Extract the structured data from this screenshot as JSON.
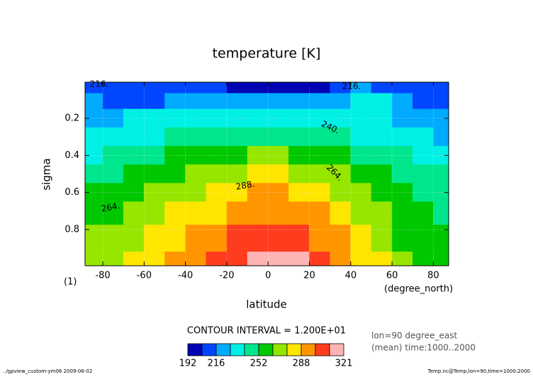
{
  "chart_data": {
    "type": "contour",
    "title": "temperature [K]",
    "x_label": "latitude",
    "y_label": "sigma",
    "x_units": "(degree_north)",
    "y_units": "(1)",
    "x": [
      -85,
      -75,
      -65,
      -55,
      -45,
      -35,
      -25,
      -15,
      -5,
      5,
      15,
      25,
      35,
      45,
      55,
      65,
      75,
      85
    ],
    "y": [
      0.03,
      0.1,
      0.2,
      0.3,
      0.4,
      0.5,
      0.6,
      0.7,
      0.85,
      0.99
    ],
    "z": [
      [
        214,
        214,
        213,
        212,
        210,
        208,
        204,
        203,
        202,
        202,
        202,
        203,
        208,
        216,
        212,
        210,
        208,
        204
      ],
      [
        216,
        214,
        212,
        213,
        216,
        218,
        218,
        218,
        218,
        218,
        218,
        219,
        222,
        228,
        228,
        225,
        214,
        210
      ],
      [
        224,
        226,
        228,
        228,
        229,
        230,
        230,
        230,
        230,
        230,
        230,
        230,
        229,
        228,
        228,
        226,
        222,
        218
      ],
      [
        230,
        233,
        236,
        238,
        240,
        242,
        244,
        246,
        247,
        247,
        246,
        244,
        242,
        238,
        235,
        232,
        229,
        227
      ],
      [
        238,
        242,
        246,
        249,
        252,
        256,
        260,
        263,
        265,
        265,
        263,
        260,
        255,
        250,
        245,
        240,
        237,
        235
      ],
      [
        246,
        250,
        254,
        258,
        262,
        266,
        270,
        274,
        277,
        277,
        275,
        271,
        266,
        260,
        253,
        247,
        244,
        242
      ],
      [
        253,
        258,
        263,
        266,
        270,
        275,
        280,
        285,
        289,
        289,
        286,
        281,
        275,
        268,
        260,
        252,
        248,
        246
      ],
      [
        258,
        263,
        268,
        272,
        277,
        282,
        287,
        292,
        295,
        295,
        293,
        288,
        282,
        274,
        266,
        258,
        252,
        250
      ],
      [
        265,
        270,
        275,
        279,
        284,
        290,
        296,
        302,
        307,
        307,
        304,
        298,
        290,
        282,
        273,
        263,
        258,
        255
      ],
      [
        270,
        275,
        280,
        284,
        290,
        296,
        303,
        310,
        316,
        317,
        312,
        305,
        294,
        286,
        276,
        266,
        262,
        258
      ]
    ],
    "xlim": [
      -88.6,
      87.4
    ],
    "ylim": [
      0.005,
      0.995
    ],
    "y_inverted": true,
    "xticks": [
      -80,
      -60,
      -40,
      -20,
      0,
      20,
      40,
      60,
      80
    ],
    "yticks": [
      0.2,
      0.4,
      0.6,
      0.8
    ],
    "grid": true,
    "levels": [
      192,
      204,
      216,
      228,
      240,
      252,
      264,
      276,
      288,
      300,
      312,
      321
    ],
    "colors": [
      "#0000b4",
      "#0046ff",
      "#00aaff",
      "#00f0e6",
      "#00e68c",
      "#00c800",
      "#96e600",
      "#ffe600",
      "#ff9600",
      "#ff3c1e",
      "#ffb4b4"
    ],
    "colorbar_ticks": [
      192,
      216,
      252,
      288,
      321
    ],
    "contour_interval_label": "CONTOUR INTERVAL = 1.200E+01",
    "contour_labels": [
      "216.",
      "216.",
      "240.",
      "264.",
      "288.",
      "264."
    ],
    "notes": [
      "lon=90 degree_east",
      "(mean) time:1000..2000"
    ],
    "footer_left": "../gpview_custom-ym06  2009-06-02",
    "footer_right": "Temp.nc@Temp,lon=90,time=1000:2000"
  }
}
